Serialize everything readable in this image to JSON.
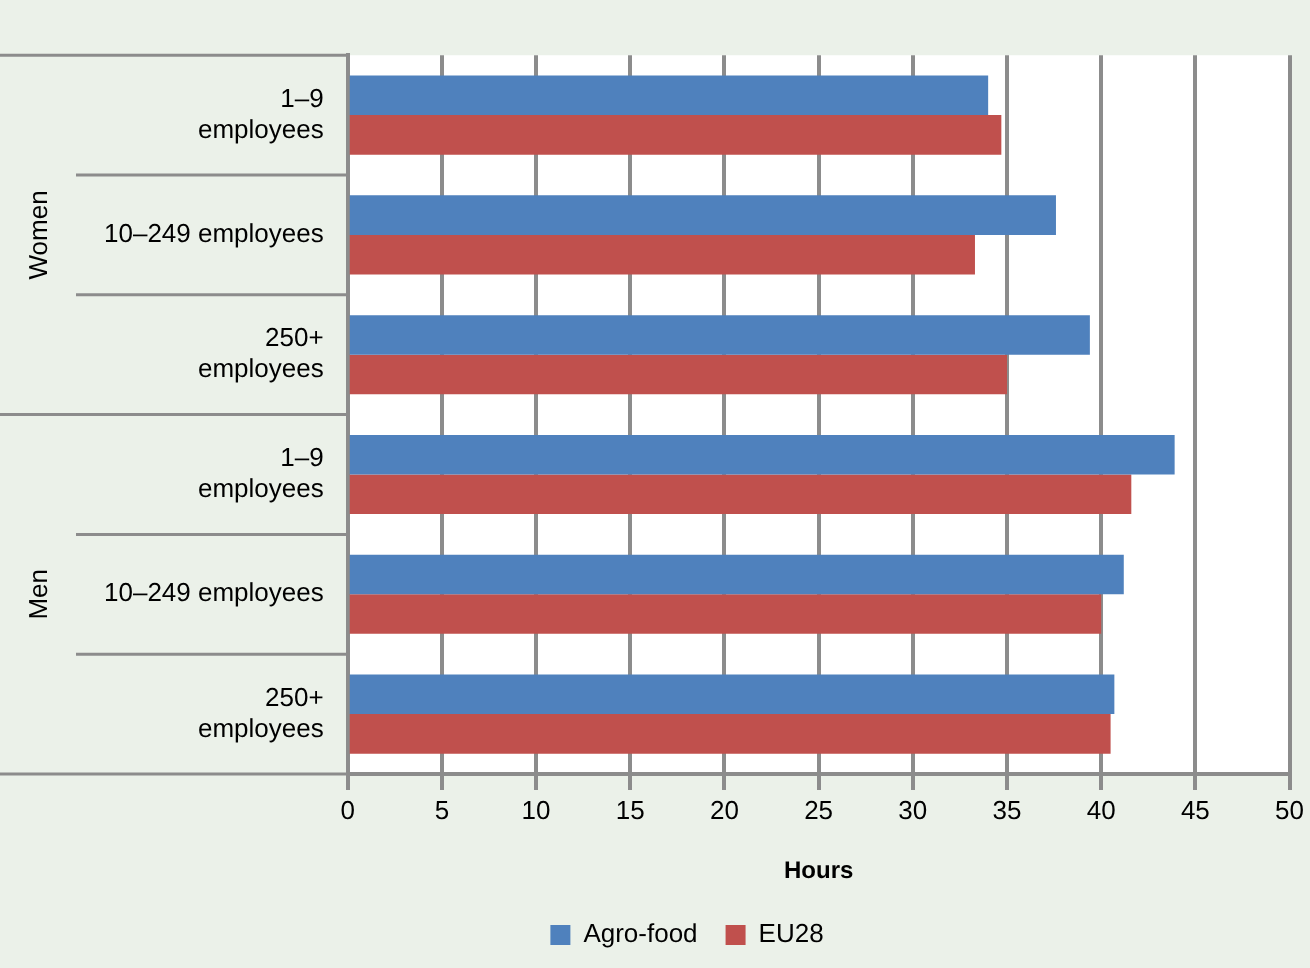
{
  "chart_data": {
    "type": "bar",
    "orientation": "horizontal",
    "xlabel": "Hours",
    "categories": [
      "1–9\nemployees",
      "10–249 employees",
      "250+\nemployees",
      "1–9\nemployees",
      "10–249 employees",
      "250+\nemployees"
    ],
    "annotations": [
      "Women",
      "Men"
    ],
    "series": [
      {
        "name": "Agro-food",
        "color": "#4f81bd",
        "values": [
          34.0,
          37.6,
          39.4,
          43.9,
          41.2,
          40.7
        ]
      },
      {
        "name": "EU28",
        "color": "#c0504d",
        "values": [
          34.7,
          33.3,
          35.0,
          41.6,
          40.0,
          40.5
        ]
      }
    ],
    "xlim": [
      0,
      50
    ],
    "xticks": [
      0,
      5,
      10,
      15,
      20,
      25,
      30,
      35,
      40,
      45,
      50
    ],
    "grid": "x",
    "legend": "bottom"
  }
}
